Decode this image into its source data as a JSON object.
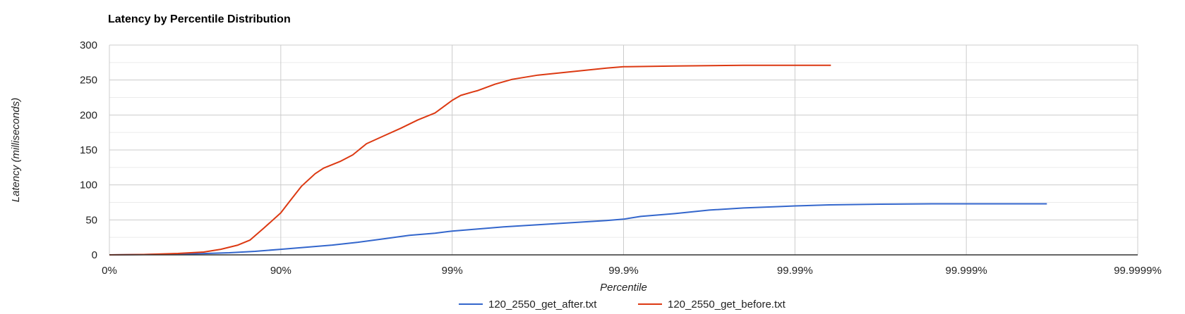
{
  "chart_data": {
    "type": "line",
    "title": "Latency by Percentile Distribution",
    "xlabel": "Percentile",
    "ylabel": "Latency (milliseconds)",
    "ylim": [
      0,
      300
    ],
    "yticks": [
      0,
      50,
      100,
      150,
      200,
      250,
      300
    ],
    "x_scale": "log-percentile (decades of nines)",
    "xlim": [
      0,
      6
    ],
    "xticks": [
      {
        "value": 0,
        "label": "0%"
      },
      {
        "value": 1,
        "label": "90%"
      },
      {
        "value": 2,
        "label": "99%"
      },
      {
        "value": 3,
        "label": "99.9%"
      },
      {
        "value": 4,
        "label": "99.99%"
      },
      {
        "value": 5,
        "label": "99.999%"
      },
      {
        "value": 6,
        "label": "99.9999%"
      }
    ],
    "grid": true,
    "legend": "bottom",
    "series": [
      {
        "name": "120_2550_get_after.txt",
        "color": "#3366cc",
        "x": [
          0,
          0.2,
          0.5,
          0.7,
          0.85,
          1.0,
          1.15,
          1.3,
          1.45,
          1.6,
          1.75,
          1.9,
          2.0,
          2.15,
          2.3,
          2.5,
          2.7,
          2.9,
          3.0,
          3.1,
          3.3,
          3.5,
          3.7,
          3.9,
          4.0,
          4.2,
          4.5,
          4.8,
          5.0,
          5.3,
          5.47
        ],
        "y": [
          0,
          0.5,
          1.5,
          3,
          5,
          8,
          11,
          14,
          18,
          23,
          28,
          31,
          34,
          37,
          40,
          43,
          46,
          49,
          51,
          55,
          59,
          64,
          67,
          69,
          70,
          71.5,
          72.5,
          73,
          73,
          73,
          73
        ]
      },
      {
        "name": "120_2550_get_before.txt",
        "color": "#dc3912",
        "x": [
          0,
          0.2,
          0.4,
          0.55,
          0.65,
          0.75,
          0.82,
          0.9,
          1.0,
          1.05,
          1.12,
          1.2,
          1.25,
          1.35,
          1.42,
          1.5,
          1.6,
          1.7,
          1.8,
          1.9,
          2.0,
          2.05,
          2.12,
          2.15,
          2.25,
          2.35,
          2.5,
          2.7,
          2.9,
          3.0,
          3.3,
          3.7,
          4.0,
          4.21
        ],
        "y": [
          0,
          0.5,
          2,
          4,
          8,
          14,
          21,
          38,
          60,
          76,
          98,
          116,
          124,
          134,
          143,
          159,
          170,
          181,
          193,
          203,
          221,
          228,
          233,
          235,
          244,
          251,
          257,
          262,
          267,
          269,
          270,
          271,
          271,
          271
        ]
      }
    ]
  }
}
